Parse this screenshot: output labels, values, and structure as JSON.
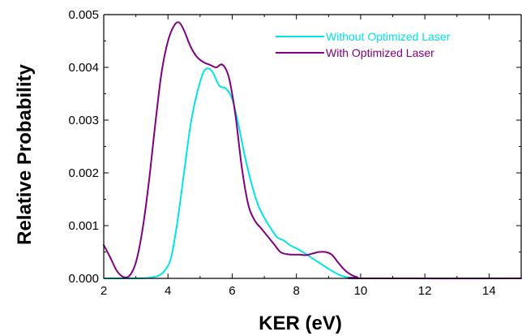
{
  "chart_data": {
    "type": "line",
    "title": "",
    "xlabel": "KER (eV)",
    "ylabel": "Relative Probability",
    "xlim": [
      2,
      15
    ],
    "ylim": [
      0,
      0.005
    ],
    "x_ticks": [
      2,
      4,
      6,
      8,
      10,
      12,
      14
    ],
    "x_tick_labels": [
      "2",
      "4",
      "6",
      "8",
      "10",
      "12",
      "14"
    ],
    "y_ticks": [
      0,
      0.001,
      0.002,
      0.003,
      0.004,
      0.005
    ],
    "y_tick_labels": [
      "0.000",
      "0.001",
      "0.002",
      "0.003",
      "0.004",
      "0.005"
    ],
    "grid": false,
    "legend_position": "top-right",
    "series": [
      {
        "name": "Without Optimized Laser",
        "color": "#00e5e5",
        "x": [
          2.0,
          3.0,
          3.4,
          3.7,
          3.9,
          4.1,
          4.3,
          4.5,
          4.7,
          4.9,
          5.1,
          5.25,
          5.4,
          5.6,
          5.8,
          6.0,
          6.2,
          6.4,
          6.6,
          6.8,
          7.0,
          7.2,
          7.4,
          7.6,
          7.8,
          8.0,
          8.2,
          8.4,
          8.6,
          8.8,
          9.0,
          9.2,
          9.4,
          9.6,
          9.8,
          10.0,
          10.5,
          15.0
        ],
        "y": [
          0,
          0,
          1e-05,
          5e-05,
          0.00015,
          0.0004,
          0.0011,
          0.002,
          0.0029,
          0.0035,
          0.0039,
          0.00398,
          0.0039,
          0.00365,
          0.0036,
          0.0034,
          0.0029,
          0.0023,
          0.0018,
          0.0014,
          0.00115,
          0.00095,
          0.00078,
          0.00072,
          0.00063,
          0.00057,
          0.0005,
          0.00042,
          0.00034,
          0.00026,
          0.00018,
          0.00011,
          5e-05,
          2e-05,
          1e-05,
          0,
          0,
          0
        ]
      },
      {
        "name": "With Optimized Laser",
        "color": "#800080",
        "x": [
          2.0,
          2.2,
          2.4,
          2.6,
          2.8,
          3.0,
          3.2,
          3.4,
          3.6,
          3.8,
          4.0,
          4.2,
          4.35,
          4.5,
          4.7,
          4.9,
          5.1,
          5.3,
          5.5,
          5.7,
          5.9,
          6.1,
          6.3,
          6.5,
          6.7,
          6.9,
          7.1,
          7.3,
          7.5,
          7.7,
          7.9,
          8.1,
          8.3,
          8.5,
          8.7,
          8.9,
          9.1,
          9.3,
          9.5,
          9.7,
          9.9,
          10.0,
          15.0
        ],
        "y": [
          0.00063,
          0.0004,
          0.00015,
          3e-05,
          5e-05,
          0.0003,
          0.0009,
          0.0018,
          0.0029,
          0.0039,
          0.0045,
          0.0048,
          0.00485,
          0.0047,
          0.0044,
          0.0042,
          0.0041,
          0.00405,
          0.004,
          0.00405,
          0.0038,
          0.0031,
          0.0021,
          0.0014,
          0.0011,
          0.00095,
          0.0008,
          0.00065,
          0.0005,
          0.00046,
          0.00045,
          0.00045,
          0.00044,
          0.00047,
          0.0005,
          0.0005,
          0.00045,
          0.0003,
          0.00016,
          7e-05,
          2e-05,
          0,
          0
        ]
      }
    ]
  }
}
